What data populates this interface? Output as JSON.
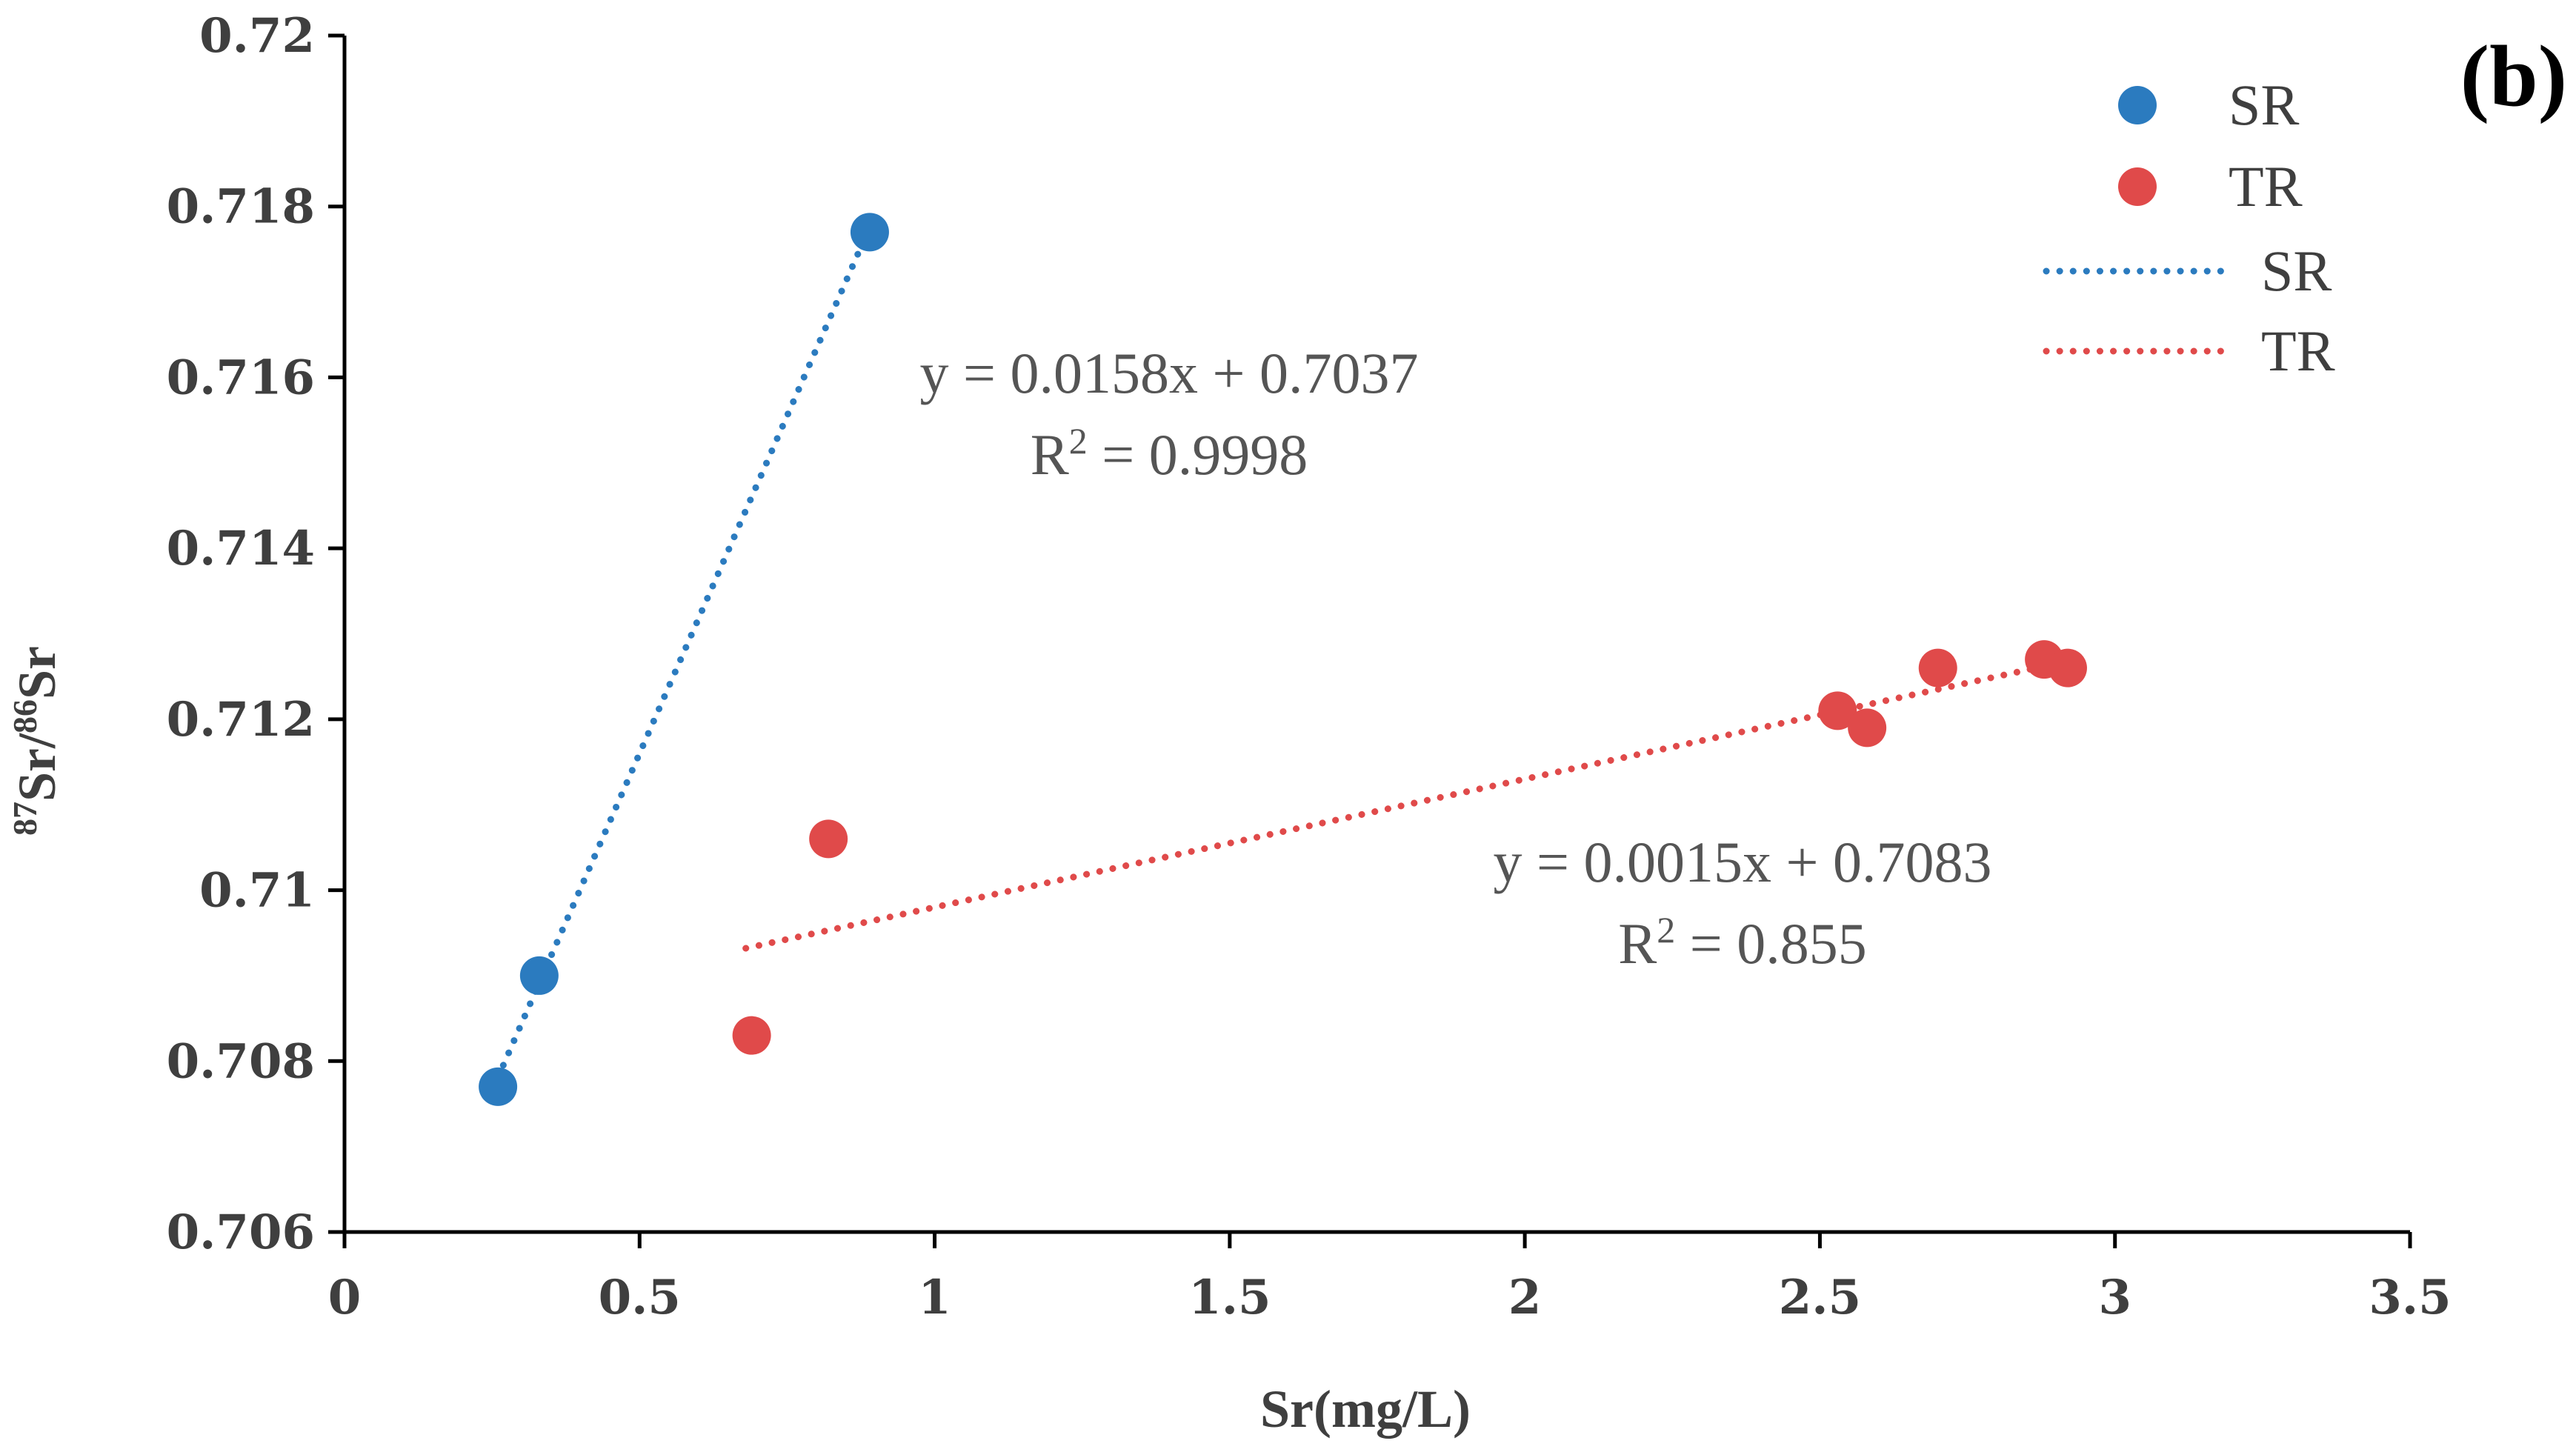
{
  "chart_data": {
    "type": "scatter",
    "panel_label": "(b)",
    "xlabel": "Sr(mg/L)",
    "ylabel": {
      "sup1": "87",
      "base1": "Sr/",
      "sup2": "86",
      "base2": "Sr"
    },
    "xlim": [
      0,
      3.5
    ],
    "ylim": [
      0.706,
      0.72
    ],
    "xticks": [
      "0",
      "0.5",
      "1",
      "1.5",
      "2",
      "2.5",
      "3",
      "3.5"
    ],
    "yticks": [
      "0.706",
      "0.708",
      "0.71",
      "0.712",
      "0.714",
      "0.716",
      "0.718",
      "0.72"
    ],
    "grid": false,
    "legend_position": "top-right",
    "series": [
      {
        "name": "SR",
        "color": "#2b7bbf",
        "points": [
          {
            "x": 0.26,
            "y": 0.7077
          },
          {
            "x": 0.33,
            "y": 0.709
          },
          {
            "x": 0.89,
            "y": 0.7177
          }
        ],
        "trendline": {
          "name": "SR",
          "slope": 0.0158,
          "intercept": 0.7037,
          "x_range": [
            0.26,
            0.89
          ],
          "equation": "y = 0.0158x + 0.7037",
          "r2_prefix": "R",
          "r2_sup": "2",
          "r2_value": " = 0.9998"
        }
      },
      {
        "name": "TR",
        "color": "#e04a4a",
        "points": [
          {
            "x": 0.69,
            "y": 0.7083
          },
          {
            "x": 0.82,
            "y": 0.7106
          },
          {
            "x": 2.53,
            "y": 0.7121
          },
          {
            "x": 2.58,
            "y": 0.7119
          },
          {
            "x": 2.7,
            "y": 0.7126
          },
          {
            "x": 2.88,
            "y": 0.7127
          },
          {
            "x": 2.92,
            "y": 0.7126
          }
        ],
        "trendline": {
          "name": "TR",
          "slope": 0.0015,
          "intercept": 0.7083,
          "x_range": [
            0.68,
            2.92
          ],
          "equation": "y = 0.0015x + 0.7083",
          "r2_prefix": "R",
          "r2_sup": "2",
          "r2_value": " = 0.855"
        }
      }
    ]
  }
}
